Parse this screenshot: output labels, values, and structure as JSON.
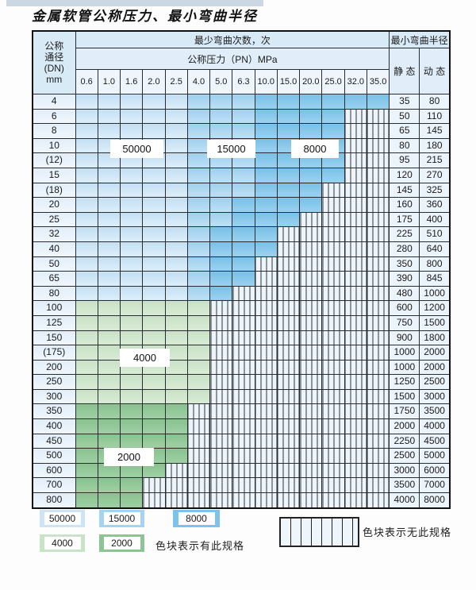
{
  "title": "金属软管公称压力、最小弯曲半径",
  "table": {
    "dn_header_lines": [
      "公称",
      "通径",
      "(DN)",
      "mm"
    ],
    "bend_times_header": "最少弯曲次数，次",
    "pressure_header": "公称压力（PN）MPa",
    "pressure_columns": [
      "0.6",
      "1.0",
      "1.6",
      "2.0",
      "2.5",
      "4.0",
      "5.0",
      "6.3",
      "10.0",
      "15.0",
      "20.0",
      "25.0",
      "32.0",
      "35.0"
    ],
    "radius_header": "最小弯曲半径",
    "static_header": "静 态",
    "dynamic_header": "动 态",
    "cell_code_meaning": {
      "L": "50000次-色块",
      "M": "15000次-色块",
      "D": "8000次-色块",
      "G": "4000次-色块",
      "H": "2000次-色块",
      "X": "无此规格-竖线纹"
    },
    "rows": [
      {
        "dn": "4",
        "cells": "LLLLLMMMDDDDDD",
        "static": "35",
        "dynamic": "80"
      },
      {
        "dn": "6",
        "cells": "LLLLLMMMDDDDXX",
        "static": "50",
        "dynamic": "110"
      },
      {
        "dn": "8",
        "cells": "LLLLLMMMDDDDXX",
        "static": "65",
        "dynamic": "145"
      },
      {
        "dn": "10",
        "cells": "LLLLLMMMDDDDXX",
        "static": "80",
        "dynamic": "180"
      },
      {
        "dn": "(12)",
        "cells": "LLLLLMMMDDDDXX",
        "static": "95",
        "dynamic": "215"
      },
      {
        "dn": "15",
        "cells": "LLLLLMMMDDDDXX",
        "static": "120",
        "dynamic": "270"
      },
      {
        "dn": "(18)",
        "cells": "LLLLLMMMDDDXXX",
        "static": "145",
        "dynamic": "325"
      },
      {
        "dn": "20",
        "cells": "LLLLLMMDDDDXXX",
        "static": "160",
        "dynamic": "360"
      },
      {
        "dn": "25",
        "cells": "LLLLLMMDDDXXXX",
        "static": "175",
        "dynamic": "400"
      },
      {
        "dn": "32",
        "cells": "LLLLLMDDDXXXXX",
        "static": "225",
        "dynamic": "510"
      },
      {
        "dn": "40",
        "cells": "LLLLLMDDDXXXXX",
        "static": "280",
        "dynamic": "640"
      },
      {
        "dn": "50",
        "cells": "LLLLLMDDXXXXXX",
        "static": "350",
        "dynamic": "800"
      },
      {
        "dn": "65",
        "cells": "LLLLLMDDXXXXXX",
        "static": "390",
        "dynamic": "845"
      },
      {
        "dn": "80",
        "cells": "LLLLLMDXXXXXXX",
        "static": "480",
        "dynamic": "1000"
      },
      {
        "dn": "100",
        "cells": "GGGGGGXXXXXXXX",
        "static": "600",
        "dynamic": "1200"
      },
      {
        "dn": "125",
        "cells": "GGGGGGXXXXXXXX",
        "static": "750",
        "dynamic": "1500"
      },
      {
        "dn": "150",
        "cells": "GGGGGGXXXXXXXX",
        "static": "900",
        "dynamic": "1800"
      },
      {
        "dn": "(175)",
        "cells": "GGGGGGXXXXXXXX",
        "static": "1000",
        "dynamic": "2000"
      },
      {
        "dn": "200",
        "cells": "GGGGGGXXXXXXXX",
        "static": "1000",
        "dynamic": "2000"
      },
      {
        "dn": "250",
        "cells": "GGGGGGXXXXXXXX",
        "static": "1250",
        "dynamic": "2500"
      },
      {
        "dn": "300",
        "cells": "GGGGGGXXXXXXXX",
        "static": "1500",
        "dynamic": "3000"
      },
      {
        "dn": "350",
        "cells": "HHHHHXXXXXXXXX",
        "static": "1750",
        "dynamic": "3500"
      },
      {
        "dn": "400",
        "cells": "HHHHHXXXXXXXXX",
        "static": "2000",
        "dynamic": "4000"
      },
      {
        "dn": "450",
        "cells": "HHHHHXXXXXXXXX",
        "static": "2250",
        "dynamic": "4500"
      },
      {
        "dn": "500",
        "cells": "HHHHHXXXXXXXXX",
        "static": "2500",
        "dynamic": "5000"
      },
      {
        "dn": "600",
        "cells": "HHHHXXXXXXXXXX",
        "static": "3000",
        "dynamic": "6000"
      },
      {
        "dn": "700",
        "cells": "HHHXXXXXXXXXXX",
        "static": "3500",
        "dynamic": "7000"
      },
      {
        "dn": "800",
        "cells": "HHHXXXXXXXXXXX",
        "static": "4000",
        "dynamic": "8000"
      }
    ],
    "overlay_labels": [
      {
        "text": "50000"
      },
      {
        "text": "15000"
      },
      {
        "text": "8000"
      },
      {
        "text": "4000"
      },
      {
        "text": "2000"
      }
    ]
  },
  "legend": {
    "items": [
      {
        "label": "50000",
        "color": "#cde4f6"
      },
      {
        "label": "15000",
        "color": "#a6d3ef"
      },
      {
        "label": "8000",
        "color": "#7cc3e9"
      },
      {
        "label": "4000",
        "color": "#c9e3c8"
      },
      {
        "label": "2000",
        "color": "#8cc593"
      }
    ],
    "has_spec_note": "色块表示有此规格",
    "no_spec_note": "色块表示无此规格"
  },
  "colors": {
    "band_50000": "#cde4f6",
    "band_15000": "#a6d3ef",
    "band_8000": "#7cc3e9",
    "band_4000": "#c9e3c8",
    "band_2000": "#8cc593",
    "no_spec_bg": "#edf4fa",
    "grid_line": "#2a2d30"
  }
}
